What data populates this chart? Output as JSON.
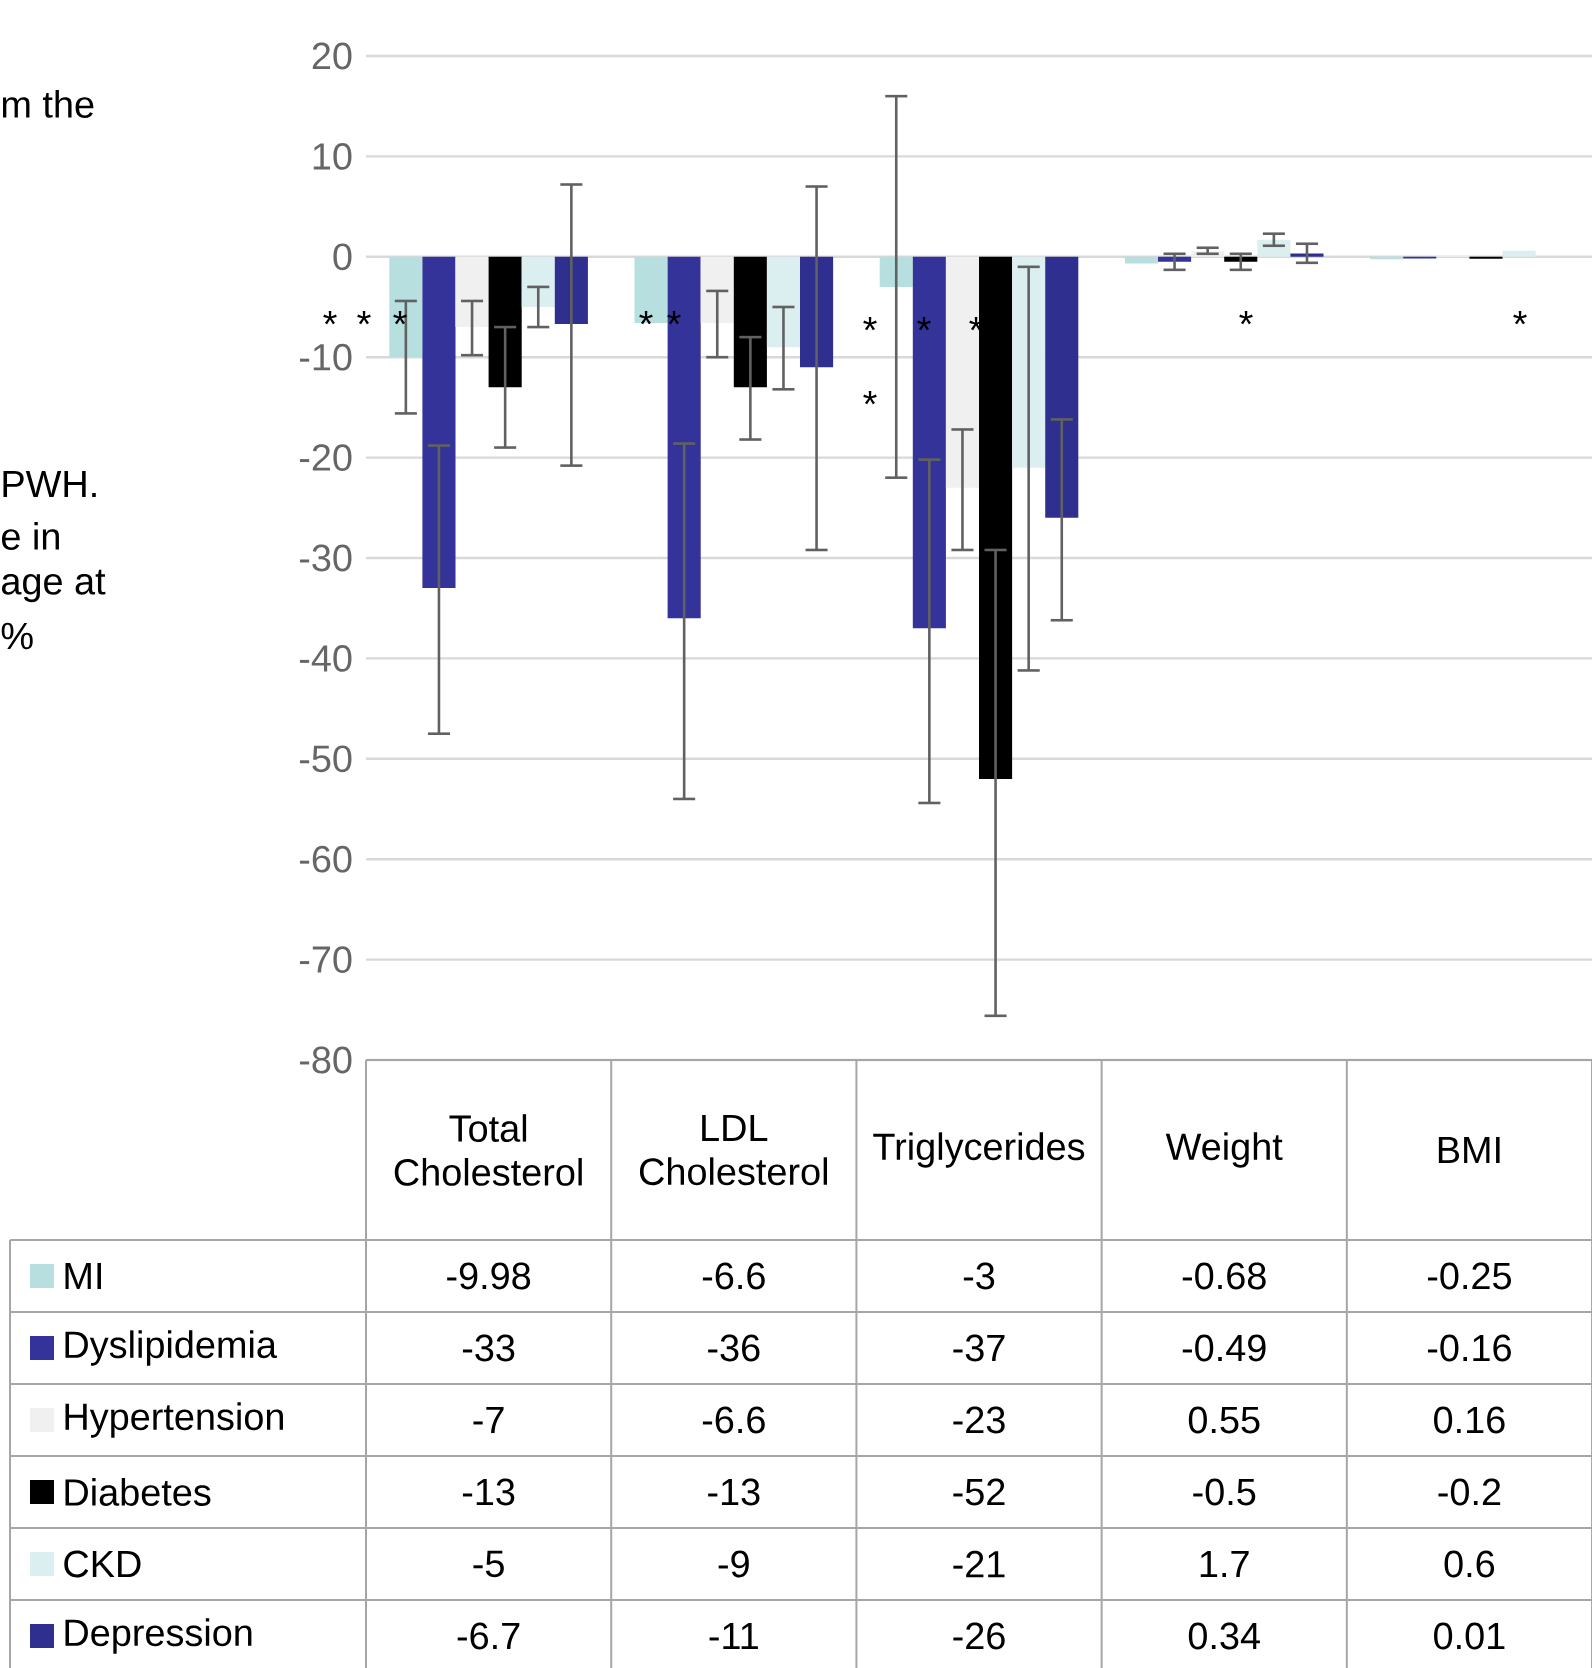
{
  "chart_data": {
    "type": "bar",
    "categories": [
      "Total Cholesterol",
      "LDL Cholesterol",
      "Triglycerides",
      "Weight",
      "BMI"
    ],
    "series": [
      {
        "name": "MI",
        "color": "#b7dfe0",
        "values": [
          -9.98,
          -6.6,
          -3,
          -0.68,
          -0.25
        ],
        "errors": [
          [
            -15.6,
            -4.4
          ],
          null,
          [
            -22,
            16
          ],
          null,
          null
        ]
      },
      {
        "name": "Dyslipidemia",
        "color": "#333399",
        "values": [
          -33,
          -36,
          -37,
          -0.49,
          -0.16
        ],
        "errors": [
          [
            -47.5,
            -18.8
          ],
          [
            -54,
            -18.6
          ],
          [
            -54.4,
            -20.2
          ],
          [
            -1.3,
            0.3
          ],
          null
        ]
      },
      {
        "name": "Hypertension",
        "color": "#f0f0f0",
        "values": [
          -7,
          -6.6,
          -23,
          0.55,
          0.16
        ],
        "errors": [
          [
            -9.8,
            -4.4
          ],
          [
            -10,
            -3.4
          ],
          [
            -29.2,
            -17.2
          ],
          [
            0.3,
            0.9
          ],
          null
        ]
      },
      {
        "name": "Diabetes",
        "color": "#000000",
        "values": [
          -13,
          -13,
          -52,
          -0.5,
          -0.2
        ],
        "errors": [
          [
            -19,
            -7
          ],
          [
            -18.2,
            -8
          ],
          [
            -75.6,
            -29.2
          ],
          [
            -1.3,
            0.3
          ],
          null
        ]
      },
      {
        "name": "CKD",
        "color": "#dbeef0",
        "values": [
          -5,
          -9,
          -21,
          1.7,
          0.6
        ],
        "errors": [
          [
            -7,
            -3
          ],
          [
            -13.2,
            -5
          ],
          [
            -41.2,
            -1
          ],
          [
            1.1,
            2.3
          ],
          null
        ]
      },
      {
        "name": "Depression",
        "color": "#2f2f8f",
        "values": [
          -6.7,
          -11,
          -26,
          0.34,
          0.01
        ],
        "errors": [
          [
            -20.8,
            7.2
          ],
          [
            -29.2,
            7
          ],
          [
            -36.2,
            -16.2
          ],
          [
            -0.6,
            1.3
          ],
          null
        ]
      }
    ],
    "ylim": [
      -80,
      20
    ],
    "yticks": [
      20,
      10,
      0,
      -10,
      -20,
      -30,
      -40,
      -50,
      -60,
      -70,
      -80
    ],
    "grid": "y",
    "legend": "bottom",
    "data_labels": true,
    "annotations": [
      "m the",
      "PWH.",
      "e in",
      "age at",
      "%",
      "*",
      "*",
      "*",
      "*",
      "*",
      "*",
      "*",
      "*",
      "*",
      "*",
      "*"
    ]
  }
}
